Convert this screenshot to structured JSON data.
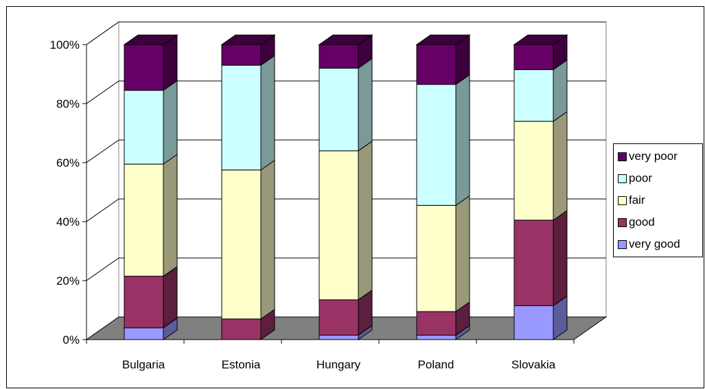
{
  "chart_data": {
    "type": "bar",
    "stacked": true,
    "percent_stacked": true,
    "three_d": true,
    "categories": [
      "Bulgaria",
      "Estonia",
      "Hungary",
      "Poland",
      "Slovakia"
    ],
    "series": [
      {
        "name": "very good",
        "color": "#9999ff",
        "side_color": "#5c5c99",
        "values": [
          4,
          0,
          1.5,
          1.5,
          11.5
        ]
      },
      {
        "name": "good",
        "color": "#993366",
        "side_color": "#5c1f3d",
        "values": [
          17.5,
          7,
          12,
          8,
          29
        ]
      },
      {
        "name": "fair",
        "color": "#ffffcc",
        "side_color": "#99997a",
        "values": [
          38,
          50.5,
          50.5,
          36,
          33.5
        ]
      },
      {
        "name": "poor",
        "color": "#ccffff",
        "side_color": "#7a9999",
        "values": [
          25,
          35.5,
          28,
          41,
          17.5
        ]
      },
      {
        "name": "very poor",
        "color": "#660066",
        "side_color": "#3d003d",
        "values": [
          15.5,
          7,
          8,
          13.5,
          8.5
        ]
      }
    ],
    "y_ticks": [
      "0%",
      "20%",
      "40%",
      "60%",
      "80%",
      "100%"
    ],
    "ylim": [
      0,
      100
    ],
    "grid": true,
    "legend_position": "right",
    "wall_color": "#ffffff",
    "floor_color": "#808080"
  }
}
